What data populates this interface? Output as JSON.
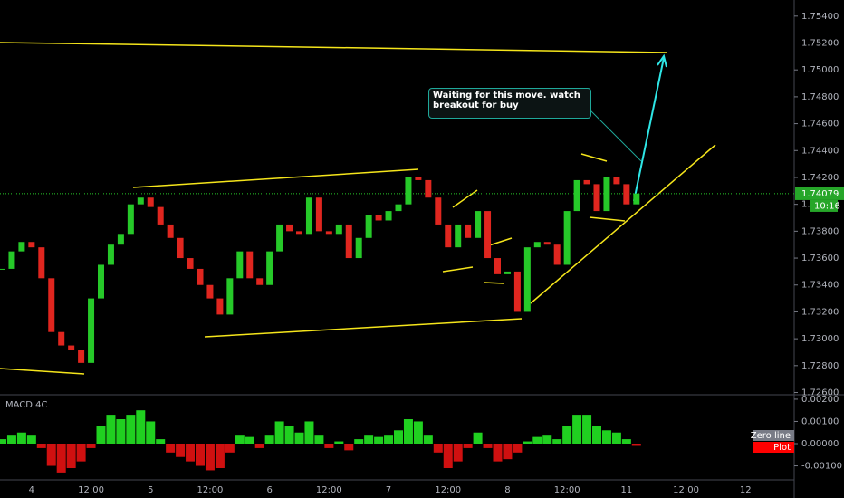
{
  "chart_data": [
    {
      "type": "candlestick",
      "categories": [
        null,
        null,
        null,
        "4",
        null,
        null,
        null,
        null,
        null,
        "12:00",
        null,
        null,
        null,
        null,
        null,
        "5",
        null,
        null,
        null,
        null,
        null,
        "12:00",
        null,
        null,
        null,
        null,
        null,
        "6",
        null,
        null,
        null,
        null,
        null,
        "12:00",
        null,
        null,
        null,
        null,
        null,
        "7",
        null,
        null,
        null,
        null,
        null,
        "12:00",
        null,
        null,
        null,
        null,
        null,
        "8",
        null,
        null,
        null,
        null,
        null,
        "12:00",
        null,
        null,
        null,
        null,
        null,
        "11",
        null,
        null,
        null,
        null,
        null,
        "12:00",
        null,
        null,
        null,
        null,
        null,
        "12"
      ],
      "values": [
        1.7352,
        1.7365,
        1.7372,
        1.7368,
        1.7345,
        1.7305,
        1.7295,
        1.7292,
        1.7282,
        1.733,
        1.7355,
        1.737,
        1.7378,
        1.74,
        1.7405,
        1.7398,
        1.7385,
        1.7375,
        1.736,
        1.7352,
        1.734,
        1.733,
        1.7318,
        1.7345,
        1.7365,
        1.7345,
        1.734,
        1.7365,
        1.7385,
        1.738,
        1.7378,
        1.7405,
        1.738,
        1.7378,
        1.7385,
        1.736,
        1.7375,
        1.7392,
        1.7388,
        1.7395,
        1.74,
        1.742,
        1.7418,
        1.7405,
        1.7385,
        1.7368,
        1.7385,
        1.7375,
        1.7395,
        1.736,
        1.7348,
        1.735,
        1.732,
        1.7368,
        1.7372,
        1.737,
        1.7355,
        1.7395,
        1.7418,
        1.7415,
        1.7395,
        1.742,
        1.7415,
        1.74,
        1.7408,
        null,
        null,
        null,
        null,
        null,
        null,
        null,
        null,
        null,
        null,
        null
      ],
      "up_color": "#26c929",
      "down_color": "#e0261f",
      "ylim": [
        1.7259,
        1.7552
      ],
      "yticks": [
        {
          "value": 1.726,
          "label": "1.72600"
        },
        {
          "value": 1.728,
          "label": "1.72800"
        },
        {
          "value": 1.73,
          "label": "1.73000"
        },
        {
          "value": 1.732,
          "label": "1.73200"
        },
        {
          "value": 1.734,
          "label": "1.73400"
        },
        {
          "value": 1.736,
          "label": "1.73600"
        },
        {
          "value": 1.738,
          "label": "1.73800"
        },
        {
          "value": 1.74,
          "label": "1.74000"
        },
        {
          "value": 1.742,
          "label": "1.74200"
        },
        {
          "value": 1.744,
          "label": "1.74400"
        },
        {
          "value": 1.746,
          "label": "1.74600"
        },
        {
          "value": 1.748,
          "label": "1.74800"
        },
        {
          "value": 1.75,
          "label": "1.75000"
        },
        {
          "value": 1.752,
          "label": "1.75200"
        },
        {
          "value": 1.754,
          "label": "1.75400"
        }
      ],
      "last_value": {
        "value": 1.74079,
        "label": "1.74079"
      },
      "countdown": "10:16",
      "annotation": "Waiting for this move. watch breakout for buy"
    },
    {
      "type": "bar",
      "title": "MACD 4C",
      "values": [
        0.0002,
        0.0004,
        0.0005,
        0.0004,
        -0.0002,
        -0.001,
        -0.0013,
        -0.0011,
        -0.0008,
        -0.0002,
        0.0008,
        0.0013,
        0.0011,
        0.0013,
        0.0015,
        0.001,
        0.0002,
        -0.0004,
        -0.0006,
        -0.0008,
        -0.001,
        -0.0012,
        -0.0011,
        -0.0004,
        0.0004,
        0.0003,
        -0.0002,
        0.0004,
        0.001,
        0.0008,
        0.0005,
        0.001,
        0.0004,
        -0.0002,
        0.0001,
        -0.0003,
        0.0002,
        0.0004,
        0.0003,
        0.0004,
        0.0006,
        0.0011,
        0.001,
        0.0004,
        -0.0004,
        -0.0011,
        -0.0008,
        -0.0002,
        0.0005,
        -0.0002,
        -0.0008,
        -0.0007,
        -0.0004,
        0.0001,
        0.0003,
        0.0004,
        0.0002,
        0.0008,
        0.0013,
        0.0013,
        0.0008,
        0.0006,
        0.0005,
        0.0002,
        -0.0001,
        null,
        null,
        null,
        null,
        null,
        null,
        null,
        null,
        null,
        null,
        null
      ],
      "up_color": "#20d020",
      "down_color": "#d01010",
      "ylim": [
        -0.00163,
        0.00216
      ],
      "yticks": [
        {
          "value": 0.002,
          "label": "0.00200"
        },
        {
          "value": 0.001,
          "label": "0.00100"
        },
        {
          "value": 0,
          "label": "0.00000"
        },
        {
          "value": -0.001,
          "label": "-0.00100"
        }
      ],
      "legend": [
        {
          "name": "Zero line",
          "color": "#787b86"
        },
        {
          "name": "Plot",
          "color": "#ff0000"
        }
      ]
    }
  ]
}
